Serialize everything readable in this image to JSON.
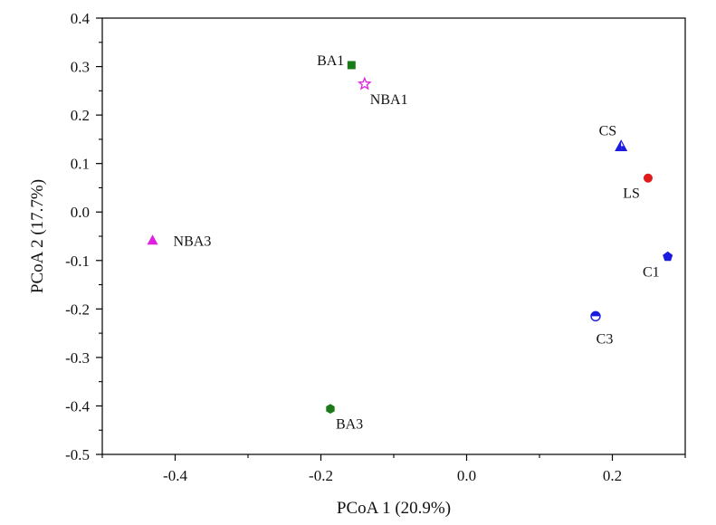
{
  "chart_data": {
    "type": "scatter",
    "title": "",
    "xlabel": "PCoA 1 (20.9%)",
    "ylabel": "PCoA 2 (17.7%)",
    "xlim": [
      -0.5,
      0.3
    ],
    "ylim": [
      -0.5,
      0.4
    ],
    "grid": false,
    "xticks": [
      -0.4,
      -0.2,
      0.0,
      0.2
    ],
    "xtick_labels": [
      "-0.4",
      "-0.2",
      "0.0",
      "0.2"
    ],
    "yticks": [
      0.4,
      0.3,
      0.2,
      0.1,
      0.0,
      -0.1,
      -0.2,
      -0.3,
      -0.4,
      -0.5
    ],
    "ytick_labels": [
      "0.4",
      "0.3",
      "0.2",
      "0.1",
      "0.0",
      "-0.1",
      "-0.2",
      "-0.3",
      "-0.4",
      "-0.5"
    ],
    "points": [
      {
        "label": "BA1",
        "x": -0.158,
        "y": 0.303,
        "marker": "square",
        "color": "#1a7a1a",
        "label_pos": "left"
      },
      {
        "label": "NBA1",
        "x": -0.14,
        "y": 0.264,
        "marker": "star",
        "color": "#e020e0",
        "label_pos": "below-right"
      },
      {
        "label": "CS",
        "x": 0.212,
        "y": 0.136,
        "marker": "triangle-half",
        "color": "#1a1ae0",
        "label_pos": "above-left"
      },
      {
        "label": "LS",
        "x": 0.249,
        "y": 0.07,
        "marker": "circle",
        "color": "#e01a1a",
        "label_pos": "below-left"
      },
      {
        "label": "NBA3",
        "x": -0.431,
        "y": -0.058,
        "marker": "triangle",
        "color": "#e020e0",
        "label_pos": "right"
      },
      {
        "label": "C1",
        "x": 0.276,
        "y": -0.092,
        "marker": "pentagon",
        "color": "#1a1ae0",
        "label_pos": "below-left"
      },
      {
        "label": "C3",
        "x": 0.177,
        "y": -0.215,
        "marker": "circle-half",
        "color": "#1a1ae0",
        "label_pos": "below"
      },
      {
        "label": "BA3",
        "x": -0.187,
        "y": -0.406,
        "marker": "hexagon",
        "color": "#1a7a1a",
        "label_pos": "below-right"
      }
    ]
  }
}
